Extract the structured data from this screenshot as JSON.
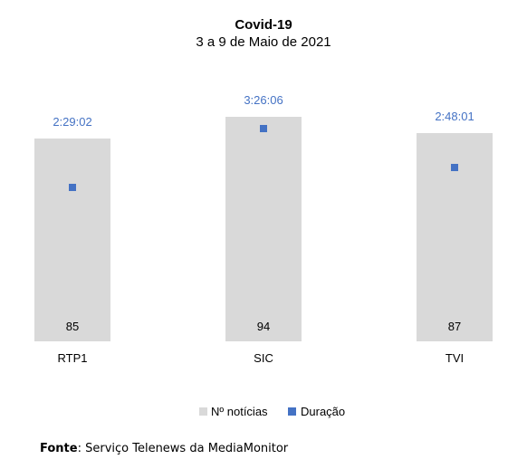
{
  "chart_data": {
    "type": "bar",
    "title": "Covid-19",
    "subtitle": "3 a 9 de Maio de 2021",
    "categories": [
      "RTP1",
      "SIC",
      "TVI"
    ],
    "series": [
      {
        "name": "Nº notícias",
        "values": [
          85,
          94,
          87
        ],
        "color": "#D9D9D9"
      },
      {
        "name": "Duração",
        "values": [
          "2:29:02",
          "3:26:06",
          "2:48:01"
        ],
        "values_seconds": [
          8942,
          12366,
          10081
        ],
        "color": "#4472C4"
      }
    ],
    "legend": "bottom-center"
  },
  "source": {
    "label": "Fonte",
    "text": "Serviço Telenews da MediaMonitor"
  }
}
